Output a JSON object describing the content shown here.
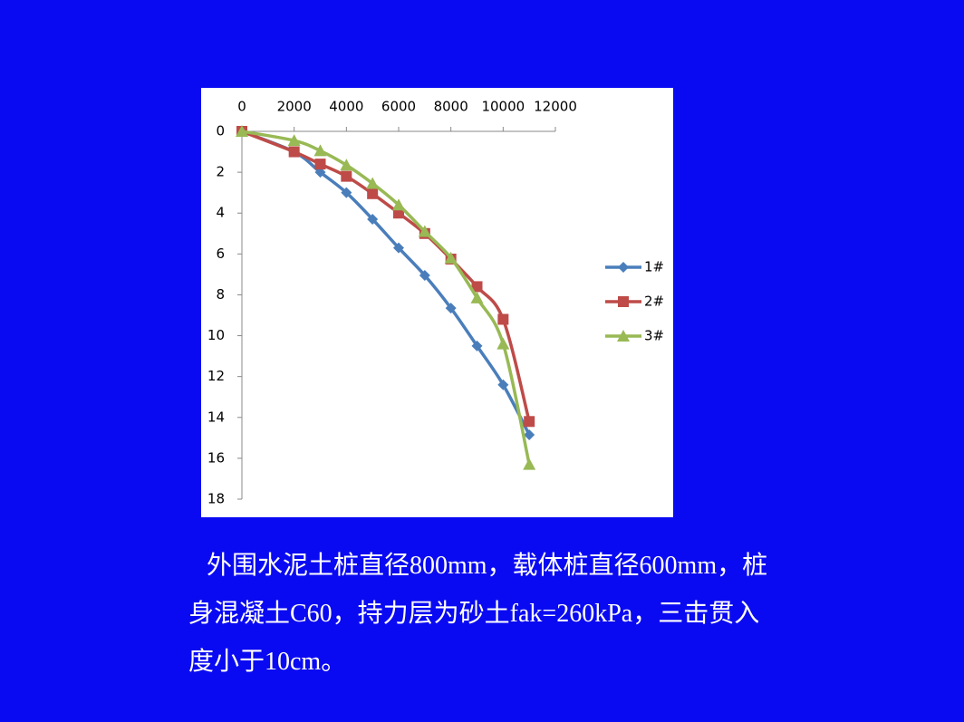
{
  "chart_data": {
    "type": "line",
    "xlim": [
      0,
      12000
    ],
    "xticks": [
      0,
      2000,
      4000,
      6000,
      8000,
      10000,
      12000
    ],
    "ylim": [
      0,
      18
    ],
    "yticks": [
      0,
      2,
      4,
      6,
      8,
      10,
      12,
      14,
      16,
      18
    ],
    "x_axis_position": "top",
    "y_inverted": true,
    "legend": "right",
    "series": [
      {
        "name": "1#",
        "color": "#4a7ebb",
        "marker": "diamond",
        "x": [
          0,
          2000,
          3000,
          4000,
          5000,
          6000,
          7000,
          8000,
          9000,
          10000,
          11000
        ],
        "values": [
          0,
          1.0,
          2.0,
          3.0,
          4.3,
          5.7,
          7.05,
          8.65,
          10.5,
          12.4,
          14.85
        ]
      },
      {
        "name": "2#",
        "color": "#be4b48",
        "marker": "square",
        "x": [
          0,
          2000,
          3000,
          4000,
          5000,
          6000,
          7000,
          8000,
          9000,
          10000,
          11000
        ],
        "values": [
          0,
          1.0,
          1.6,
          2.2,
          3.05,
          4.0,
          5.0,
          6.25,
          7.6,
          9.2,
          14.2
        ]
      },
      {
        "name": "3#",
        "color": "#98b954",
        "marker": "triangle",
        "x": [
          0,
          2000,
          3000,
          4000,
          5000,
          6000,
          7000,
          8000,
          9000,
          10000,
          11000
        ],
        "values": [
          0,
          0.45,
          0.95,
          1.65,
          2.55,
          3.6,
          4.9,
          6.2,
          8.15,
          10.4,
          16.3
        ]
      }
    ]
  },
  "caption": "外围水泥土桩直径800mm，载体桩直径600mm，桩身混凝土C60，持力层为砂土fak=260kPa，三击贯入度小于10cm。"
}
